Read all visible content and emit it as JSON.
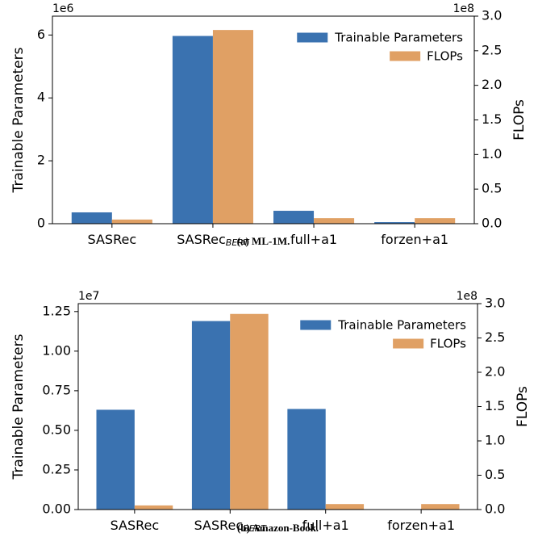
{
  "chart_data": [
    {
      "type": "bar",
      "caption": "(a) ML-1M.",
      "categories": [
        "SASRec",
        "SASRec",
        "full+a1",
        "forzen+a1"
      ],
      "category_subscripts": [
        null,
        "BERT",
        null,
        null
      ],
      "y_label": "Trainable Parameters",
      "y2_label": "FLOPs",
      "y_offset": "1e6",
      "y2_offset": "1e8",
      "ylim": [
        0,
        6.6
      ],
      "yticks": [
        0,
        2,
        4,
        6
      ],
      "y2lim": [
        0,
        3.0
      ],
      "y2ticks": [
        {
          "value": 0,
          "label": "0.0"
        },
        {
          "value": 0.5,
          "label": "0.5"
        },
        {
          "value": 1,
          "label": "1.0"
        },
        {
          "value": 1.5,
          "label": "1.5"
        },
        {
          "value": 2,
          "label": "2.0"
        },
        {
          "value": 2.5,
          "label": "2.5"
        },
        {
          "value": 3,
          "label": "3.0"
        }
      ],
      "legend": "upper right",
      "series": [
        {
          "name": "Trainable Parameters",
          "color": "#3a72b0",
          "values": [
            0.36,
            5.97,
            0.41,
            0.05
          ]
        },
        {
          "name": "FLOPs",
          "color": "#e0a064",
          "axis": "y2",
          "values": [
            0.06,
            2.8,
            0.08,
            0.08
          ]
        }
      ]
    },
    {
      "type": "bar",
      "caption": "(b) Amazon-Book.",
      "categories": [
        "SASRec",
        "SASRec",
        "full+a1",
        "forzen+a1"
      ],
      "category_subscripts": [
        null,
        "BERT",
        null,
        null
      ],
      "y_label": "Trainable Parameters",
      "y2_label": "FLOPs",
      "y_offset": "1e7",
      "y2_offset": "1e8",
      "ylim": [
        0,
        1.3
      ],
      "yticks": [
        {
          "value": 0,
          "label": "0.00"
        },
        {
          "value": 0.25,
          "label": "0.25"
        },
        {
          "value": 0.5,
          "label": "0.50"
        },
        {
          "value": 0.75,
          "label": "0.75"
        },
        {
          "value": 1,
          "label": "1.00"
        },
        {
          "value": 1.25,
          "label": "1.25"
        }
      ],
      "y2lim": [
        0,
        3.0
      ],
      "y2ticks": [
        {
          "value": 0,
          "label": "0.0"
        },
        {
          "value": 0.5,
          "label": "0.5"
        },
        {
          "value": 1,
          "label": "1.0"
        },
        {
          "value": 1.5,
          "label": "1.5"
        },
        {
          "value": 2,
          "label": "2.0"
        },
        {
          "value": 2.5,
          "label": "2.5"
        },
        {
          "value": 3,
          "label": "3.0"
        }
      ],
      "legend": "upper right",
      "series": [
        {
          "name": "Trainable Parameters",
          "color": "#3a72b0",
          "values": [
            0.63,
            1.19,
            0.635,
            0
          ]
        },
        {
          "name": "FLOPs",
          "color": "#e0a064",
          "axis": "y2",
          "values": [
            0.06,
            2.85,
            0.08,
            0.08
          ]
        }
      ]
    }
  ]
}
